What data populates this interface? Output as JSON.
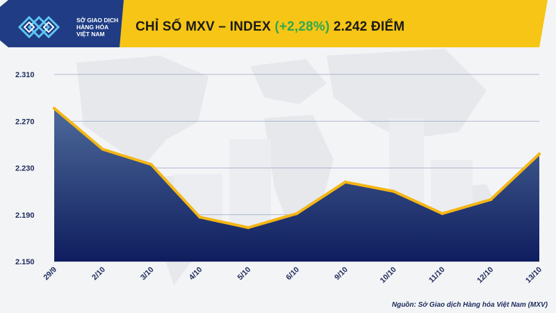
{
  "header": {
    "logo_lines": [
      "SỞ GIAO DỊCH",
      "HÀNG HÓA",
      "VIỆT NAM"
    ],
    "title_prefix": "CHỈ SỐ MXV – INDEX",
    "title_change": "(+2,28%)",
    "title_value": "2.242 ĐIỂM"
  },
  "colors": {
    "header_yellow": "#f6c515",
    "line_yellow": "#f4b614",
    "fill_top": "#4d6a9a",
    "fill_bottom": "#0f1d5e",
    "change_green": "#2fa84f"
  },
  "chart_data": {
    "type": "area",
    "title": "CHỈ SỐ MXV – INDEX (+2,28%) 2.242 ĐIỂM",
    "categories": [
      "29/9",
      "2/10",
      "3/10",
      "4/10",
      "5/10",
      "6/10",
      "9/10",
      "10/10",
      "11/10",
      "12/10",
      "13/10"
    ],
    "values": [
      2281,
      2246,
      2233,
      2188,
      2179,
      2191,
      2218,
      2210,
      2191,
      2203,
      2242
    ],
    "ylim": [
      2150,
      2310
    ],
    "yticks": [
      2150,
      2190,
      2230,
      2270,
      2310
    ],
    "ytick_labels": [
      "2.150",
      "2.190",
      "2.230",
      "2.270",
      "2.310"
    ],
    "grid": true,
    "xlabel": "",
    "ylabel": ""
  },
  "source": "Nguồn: Sở Giao dịch Hàng hóa Việt Nam (MXV)"
}
